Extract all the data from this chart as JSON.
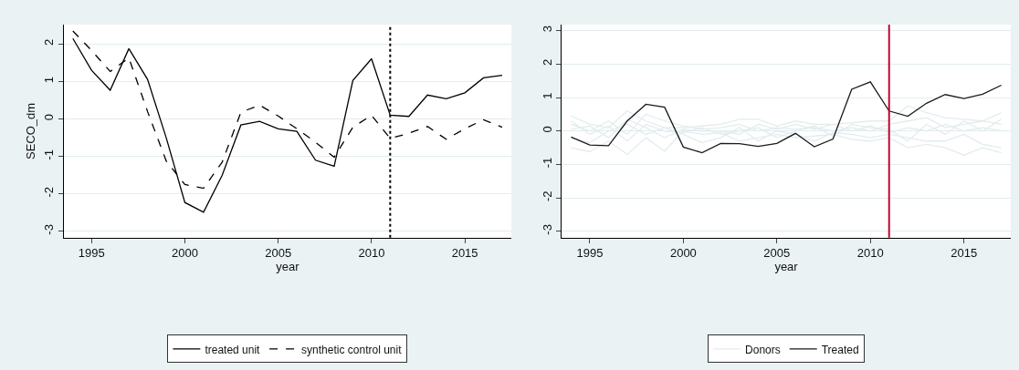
{
  "chart_data": [
    {
      "type": "line",
      "xlabel": "year",
      "ylabel": "SECO_dm",
      "xlim": [
        1993.5,
        2017.5
      ],
      "ylim": [
        -3.17,
        2.52
      ],
      "xticks": [
        1995,
        2000,
        2005,
        2010,
        2015
      ],
      "yticks": [
        -3,
        -2,
        -1,
        0,
        1,
        2
      ],
      "grid": "y",
      "legend": "bottom",
      "x": [
        1994,
        1995,
        1996,
        1997,
        1998,
        1999,
        2000,
        2001,
        2002,
        2003,
        2004,
        2005,
        2006,
        2007,
        2008,
        2009,
        2010,
        2011,
        2012,
        2013,
        2014,
        2015,
        2016,
        2017
      ],
      "series": [
        {
          "name": "treated unit",
          "color": "#000000",
          "line_style": "solid",
          "values": [
            2.15,
            1.3,
            0.77,
            1.88,
            1.06,
            -0.5,
            -2.23,
            -2.49,
            -1.5,
            -0.16,
            -0.06,
            -0.26,
            -0.33,
            -1.1,
            -1.26,
            1.03,
            1.61,
            0.1,
            0.07,
            0.64,
            0.54,
            0.7,
            1.1,
            1.17
          ]
        },
        {
          "name": "synthetic control unit",
          "color": "#000000",
          "line_style": "dashed",
          "values": [
            2.35,
            1.83,
            1.27,
            1.63,
            0.2,
            -1.12,
            -1.75,
            -1.85,
            -1.15,
            0.18,
            0.37,
            0.08,
            -0.26,
            -0.62,
            -1.02,
            -0.22,
            0.1,
            -0.52,
            -0.38,
            -0.2,
            -0.54,
            -0.26,
            -0.02,
            -0.22
          ]
        }
      ],
      "ref_lines": [
        {
          "axis": "x",
          "value": 2011,
          "label": null,
          "color": "#000000",
          "line_style": "dotted"
        }
      ]
    },
    {
      "type": "line",
      "xlabel": "year",
      "xlim": [
        1993.5,
        2017.5
      ],
      "ylim": [
        -3.19,
        3.18
      ],
      "xticks": [
        1995,
        2000,
        2005,
        2010,
        2015
      ],
      "yticks": [
        -3,
        -2,
        -1,
        0,
        1,
        2,
        3
      ],
      "grid": "y",
      "legend": "bottom",
      "x": [
        1994,
        1995,
        1996,
        1997,
        1998,
        1999,
        2000,
        2001,
        2002,
        2003,
        2004,
        2005,
        2006,
        2007,
        2008,
        2009,
        2010,
        2011,
        2012,
        2013,
        2014,
        2015,
        2016,
        2017
      ],
      "series": [
        {
          "name": "Donors",
          "color": "#e3ecee",
          "line_style": "solid",
          "values": [
            0.45,
            0.2,
            0.1,
            0.6,
            0.3,
            0.1,
            0.1,
            0.15,
            0.2,
            0.35,
            0.35,
            0.15,
            0.3,
            0.2,
            0.2,
            0.25,
            0.3,
            0.3,
            0.75,
            0.55,
            0.4,
            0.35,
            0.3,
            0.55
          ]
        },
        {
          "name": null,
          "color": "#e3ecee",
          "line_style": "solid",
          "values": [
            -0.5,
            -0.62,
            -0.3,
            -0.7,
            -0.2,
            -0.6,
            0.0,
            -0.1,
            -0.05,
            -0.3,
            -0.2,
            -0.1,
            -0.2,
            -0.15,
            -0.1,
            -0.25,
            -0.3,
            -0.2,
            -0.5,
            -0.4,
            -0.5,
            -0.72,
            -0.5,
            -0.65
          ]
        },
        {
          "name": null,
          "color": "#e3ecee",
          "line_style": "solid",
          "values": [
            0.2,
            0.0,
            0.3,
            -0.1,
            0.5,
            0.3,
            0.15,
            0.05,
            0.1,
            0.2,
            0.0,
            0.1,
            0.05,
            0.1,
            0.0,
            0.1,
            0.0,
            0.2,
            0.3,
            0.4,
            0.1,
            0.2,
            0.3,
            0.2
          ]
        },
        {
          "name": null,
          "color": "#e3ecee",
          "line_style": "solid",
          "values": [
            -0.2,
            -0.35,
            0.0,
            0.2,
            -0.1,
            0.1,
            -0.1,
            -0.35,
            -0.2,
            0.1,
            -0.3,
            0.0,
            -0.1,
            -0.3,
            -0.05,
            -0.1,
            -0.2,
            -0.1,
            -0.2,
            -0.3,
            -0.3,
            -0.1,
            -0.4,
            -0.5
          ]
        },
        {
          "name": null,
          "color": "#e3ecee",
          "line_style": "solid",
          "values": [
            0.05,
            0.15,
            -0.2,
            0.35,
            0.1,
            -0.2,
            0.05,
            0.0,
            0.0,
            -0.1,
            0.2,
            0.05,
            0.2,
            0.05,
            0.2,
            0.0,
            0.15,
            -0.05,
            0.1,
            0.0,
            0.2,
            0.0,
            0.1,
            0.0
          ]
        },
        {
          "name": null,
          "color": "#e3ecee",
          "line_style": "solid",
          "values": [
            0.3,
            -0.1,
            0.15,
            -0.3,
            0.2,
            0.0,
            -0.05,
            0.1,
            -0.1,
            0.0,
            0.1,
            -0.2,
            0.0,
            0.15,
            -0.15,
            0.2,
            0.1,
            0.05,
            -0.3,
            0.2,
            -0.1,
            0.3,
            0.0,
            0.35
          ]
        },
        {
          "name": "Treated",
          "color": "#1a1a1a",
          "line_style": "solid",
          "values": [
            -0.18,
            -0.42,
            -0.44,
            0.3,
            0.8,
            0.71,
            -0.48,
            -0.65,
            -0.37,
            -0.38,
            -0.46,
            -0.37,
            -0.07,
            -0.47,
            -0.24,
            1.25,
            1.47,
            0.6,
            0.44,
            0.83,
            1.09,
            0.97,
            1.1,
            1.37
          ]
        }
      ],
      "ref_lines": [
        {
          "axis": "x",
          "value": 2011,
          "label": null,
          "color": "#c10534",
          "line_style": "solid"
        }
      ]
    }
  ]
}
